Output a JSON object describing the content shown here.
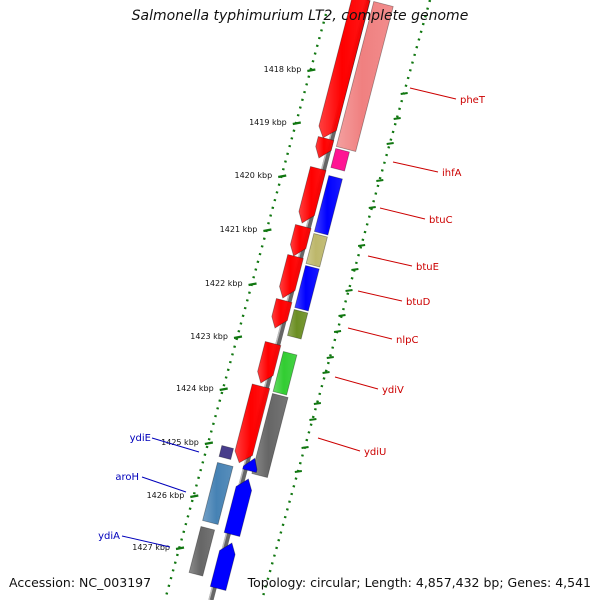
{
  "title": "Salmonella typhimurium LT2, complete genome",
  "accession": "Accession: NC_003197",
  "topology": "Topology: circular; Length: 4,857,432 bp; Genes: 4,541",
  "colors": {
    "backbone": "#888888",
    "tick": "#117711",
    "right_label": "#cc0000",
    "left_label": "#0000bb"
  },
  "scale_labels": [
    "1418 kbp",
    "1419 kbp",
    "1420 kbp",
    "1421 kbp",
    "1422 kbp",
    "1423 kbp",
    "1424 kbp",
    "1425 kbp",
    "1426 kbp",
    "1427 kbp"
  ],
  "right_labels": [
    "pheT",
    "ihfA",
    "btuC",
    "btuE",
    "btuD",
    "nlpC",
    "ydiV",
    "ydiU"
  ],
  "left_labels": [
    "ydiE",
    "aroH",
    "ydiA"
  ],
  "feature_colors": {
    "cds": "#ff0000",
    "pheT": "#f08080",
    "ihfA": "#ff1493",
    "btuC": "#0000ff",
    "btuE": "#bdb76b",
    "btuD": "#0000ff",
    "nlpC": "#6b8e23",
    "ydiV": "#32cd32",
    "ydiU": "#666666",
    "ydiE": "#483d8b",
    "aroH": "#4682b4",
    "ydiA": "#666666",
    "forward": "#0000ff"
  }
}
